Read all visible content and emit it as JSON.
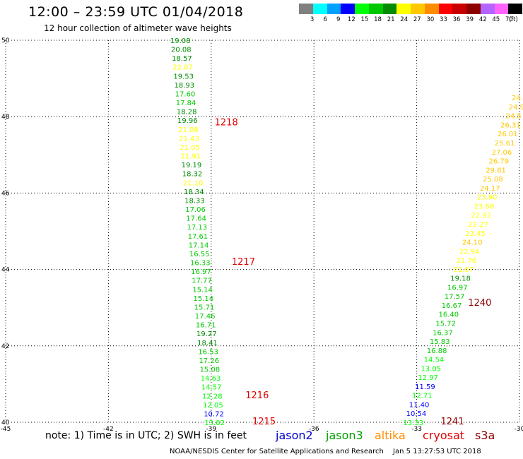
{
  "header": {
    "title": "12:00 – 23:59 UTC 01/04/2018",
    "subtitle": "12 hour collection of altimeter wave heights"
  },
  "legend": {
    "unit": "(ft)",
    "bins": [
      {
        "label": "3",
        "color": "#808080"
      },
      {
        "label": "6",
        "color": "#00ffff"
      },
      {
        "label": "9",
        "color": "#00a0ff"
      },
      {
        "label": "12",
        "color": "#0000ff"
      },
      {
        "label": "15",
        "color": "#00ff00"
      },
      {
        "label": "18",
        "color": "#00c800"
      },
      {
        "label": "21",
        "color": "#008c00"
      },
      {
        "label": "24",
        "color": "#ffff00"
      },
      {
        "label": "27",
        "color": "#ffc800"
      },
      {
        "label": "30",
        "color": "#ff8c00"
      },
      {
        "label": "33",
        "color": "#ff0000"
      },
      {
        "label": "36",
        "color": "#c80000"
      },
      {
        "label": "39",
        "color": "#8c0000"
      },
      {
        "label": "42",
        "color": "#b464ff"
      },
      {
        "label": "45",
        "color": "#ff64ff"
      },
      {
        "label": "70",
        "color": "#000000"
      }
    ]
  },
  "footer": {
    "note": "note: 1) Time is in UTC; 2) SWH is in feet",
    "satellites": [
      {
        "name": "jason2",
        "color": "#0000d0"
      },
      {
        "name": "jason3",
        "color": "#00a000"
      },
      {
        "name": "altika",
        "color": "#ff8c00"
      },
      {
        "name": "cryosat",
        "color": "#e00000"
      },
      {
        "name": "s3a",
        "color": "#8c0000"
      }
    ],
    "credit": "NOAA/NESDIS Center for Satellite Applications and Research",
    "timestamp": "Jan  5 13:27:53 UTC 2018"
  },
  "chart_data": {
    "type": "scatter",
    "title": "12:00 – 23:59 UTC 01/04/2018",
    "subtitle": "12 hour collection of altimeter wave heights",
    "xlim": [
      -45,
      -30
    ],
    "ylim": [
      40,
      50
    ],
    "x_ticks": [
      "-45",
      "-42",
      "-39",
      "-36",
      "-33",
      "-30"
    ],
    "y_ticks": [
      "40",
      "42",
      "44",
      "46",
      "48",
      "50"
    ],
    "grid": true,
    "time_labels": [
      {
        "text": "1218",
        "lon": -38.9,
        "lat": 47.85,
        "color": "#e00000"
      },
      {
        "text": "1217",
        "lon": -38.4,
        "lat": 44.2,
        "color": "#e00000"
      },
      {
        "text": "1216",
        "lon": -38.0,
        "lat": 40.7,
        "color": "#e00000"
      },
      {
        "text": "1215",
        "lon": -37.8,
        "lat": 40.02,
        "color": "#e00000"
      },
      {
        "text": "1240",
        "lon": -31.5,
        "lat": 43.12,
        "color": "#8c0000"
      },
      {
        "text": "1241",
        "lon": -32.3,
        "lat": 40.02,
        "color": "#8c0000"
      }
    ],
    "series": [
      {
        "lon_start": -39.9,
        "lat_start": 50.0,
        "lon_end": -38.9,
        "lat_end": 40.0,
        "values": [
          "19.08",
          "20.08",
          "18.57",
          "22.07",
          "19.53",
          "18.93",
          "17.60",
          "17.84",
          "18.28",
          "19.96",
          "21.08",
          "21.43",
          "21.05",
          "21.91",
          "19.19",
          "18.32",
          "21.10",
          "18.34",
          "18.33",
          "17.06",
          "17.64",
          "17.13",
          "17.61",
          "17.14",
          "16.55",
          "16.33",
          "16.97",
          "17.77",
          "15.14",
          "15.14",
          "15.71",
          "17.46",
          "16.71",
          "19.27",
          "18.41",
          "16.53",
          "17.26",
          "15.08",
          "14.63",
          "14.57",
          "12.28",
          "12.05",
          "10.72",
          "13.02"
        ],
        "colors": [
          "#008c00",
          "#008c00",
          "#008c00",
          "#ffff00",
          "#008c00",
          "#008c00",
          "#00c800",
          "#00c800",
          "#008c00",
          "#008c00",
          "#ffff00",
          "#ffff00",
          "#ffff00",
          "#ffff00",
          "#008c00",
          "#008c00",
          "#ffff00",
          "#008c00",
          "#008c00",
          "#00c800",
          "#00c800",
          "#00c800",
          "#00c800",
          "#00c800",
          "#00c800",
          "#00c800",
          "#00c800",
          "#00c800",
          "#00c800",
          "#00c800",
          "#00c800",
          "#00c800",
          "#00c800",
          "#008c00",
          "#008c00",
          "#00c800",
          "#00c800",
          "#00c800",
          "#00ff00",
          "#00ff00",
          "#00ff00",
          "#00ff00",
          "#0000ff",
          "#00ff00"
        ]
      },
      {
        "lon_start": -33.1,
        "lat_start": 40.0,
        "lon_end": -30.0,
        "lat_end": 48.5,
        "values": [
          "13.33",
          "10.54",
          "11.40",
          "12.71",
          "11.59",
          "12.97",
          "13.05",
          "14.54",
          "16.88",
          "15.83",
          "16.37",
          "15.72",
          "16.40",
          "16.67",
          "17.57",
          "16.97",
          "19.18",
          "21.67",
          "21.76",
          "22.94",
          "24.10",
          "23.45",
          "22.27",
          "22.92",
          "23.68",
          "23.90",
          "24.17",
          "25.08",
          "29.81",
          "26.79",
          "27.06",
          "25.61",
          "26.01",
          "26.31",
          "24.5",
          "24.9",
          "24.3"
        ],
        "colors": [
          "#00ff00",
          "#0000ff",
          "#0000ff",
          "#00ff00",
          "#0000ff",
          "#00ff00",
          "#00ff00",
          "#00ff00",
          "#00c800",
          "#00c800",
          "#00c800",
          "#00c800",
          "#00c800",
          "#00c800",
          "#00c800",
          "#00c800",
          "#008c00",
          "#ffff00",
          "#ffff00",
          "#ffff00",
          "#ffc800",
          "#ffff00",
          "#ffff00",
          "#ffff00",
          "#ffff00",
          "#ffff00",
          "#ffc800",
          "#ffc800",
          "#ffc800",
          "#ffc800",
          "#ffc800",
          "#ffc800",
          "#ffc800",
          "#ffc800",
          "#ffc800",
          "#ffc800",
          "#ffc800"
        ]
      }
    ]
  }
}
